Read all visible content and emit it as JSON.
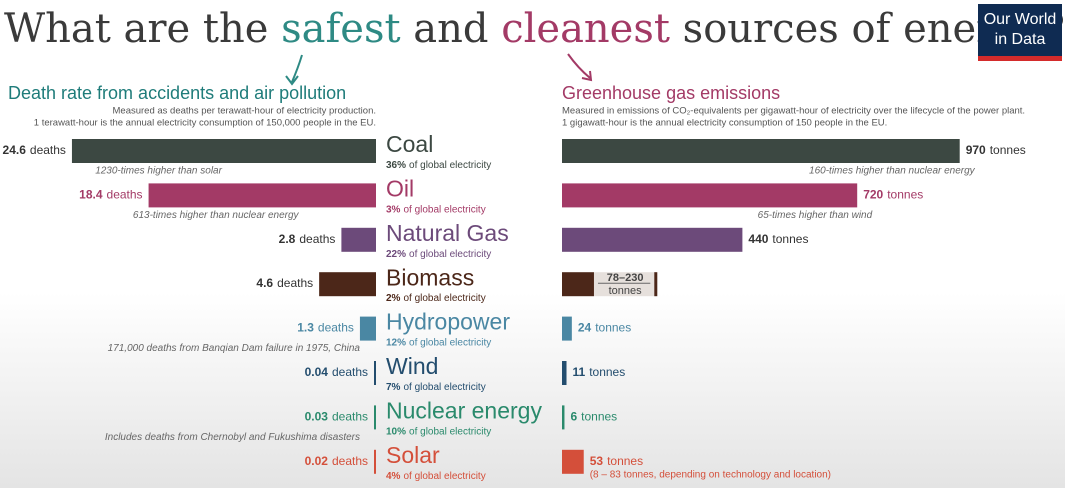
{
  "title_parts": [
    "What are the ",
    "safest",
    " and ",
    "cleanest",
    " sources of energy?"
  ],
  "logo": [
    "Our World",
    "in Data"
  ],
  "chart_data": [
    {
      "type": "bar",
      "direction": "left",
      "title": "Death rate from accidents and air pollution",
      "subtitle": [
        "Measured as deaths per terawatt-hour of electricity production.",
        "1 terawatt-hour is the annual electricity consumption of 150,000 people in the EU."
      ],
      "categories": [
        "Coal",
        "Oil",
        "Natural Gas",
        "Biomass",
        "Hydropower",
        "Wind",
        "Nuclear energy",
        "Solar"
      ],
      "colors": [
        "#3c4842",
        "#a33a66",
        "#6c4a7a",
        "#4c2719",
        "#4a87a3",
        "#234d6e",
        "#2a8a6c",
        "#d44f3a"
      ],
      "shares": [
        36,
        3,
        22,
        2,
        12,
        7,
        10,
        4
      ],
      "share_labels": [
        "36%",
        "3%",
        "22%",
        "2%",
        "12%",
        "7%",
        "10%",
        "4%"
      ],
      "share_suffix": "of global electricity",
      "values": [
        24.6,
        18.4,
        2.8,
        4.6,
        1.3,
        0.04,
        0.03,
        0.02
      ],
      "unit": "deaths",
      "notes": [
        "1230-times higher than solar",
        "613-times higher than nuclear energy",
        null,
        null,
        "171,000 deaths from Banqian Dam failure in 1975, China",
        null,
        "Includes deaths from Chernobyl and Fukushima disasters",
        null
      ],
      "xlim": [
        0,
        25
      ]
    },
    {
      "type": "bar",
      "direction": "right",
      "title": "Greenhouse gas emissions",
      "subtitle": [
        "Measured in emissions of CO₂-equivalents per gigawatt-hour of electricity over the lifecycle of the power plant.",
        "1 gigawatt-hour is the annual electricity consumption of 150 people in the EU."
      ],
      "values": [
        970,
        720,
        440,
        null,
        24,
        11,
        6,
        53
      ],
      "ranges": [
        null,
        null,
        null,
        [
          78,
          230
        ],
        null,
        null,
        null,
        null
      ],
      "range_labels": [
        null,
        null,
        null,
        "78–230",
        null,
        null,
        null,
        null
      ],
      "unit": "tonnes",
      "notes": [
        "160-times higher than nuclear energy",
        "65-times higher than wind",
        null,
        null,
        null,
        null,
        null,
        "(8 – 83 tonnes, depending on technology and location)"
      ],
      "xlim": [
        0,
        1000
      ]
    }
  ]
}
